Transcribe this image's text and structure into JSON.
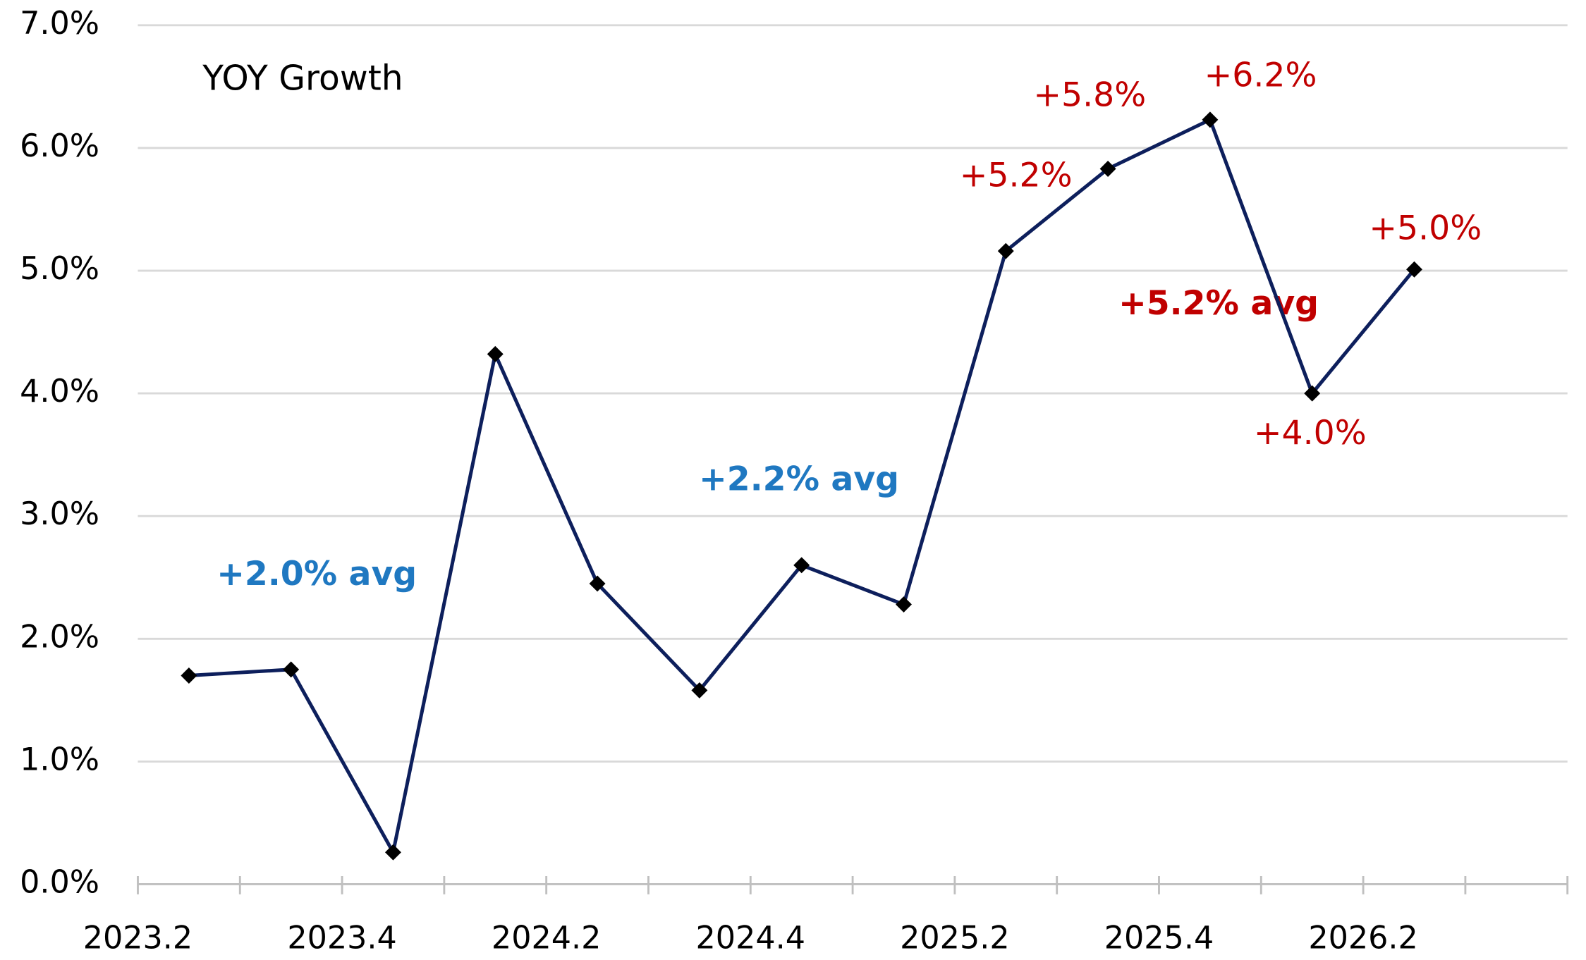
{
  "chart_data": {
    "type": "line",
    "annotations": [
      {
        "text": "YOY Growth",
        "color": "#000000",
        "bold": false
      },
      {
        "text": "+2.0% avg",
        "color": "#1f78c1",
        "bold": true
      },
      {
        "text": "+2.2% avg",
        "color": "#1f78c1",
        "bold": true
      },
      {
        "text": "+5.2% avg",
        "color": "#c00000",
        "bold": true
      }
    ],
    "categories": [
      "2023.2",
      null,
      "2023.4",
      null,
      "2024.2",
      null,
      "2024.4",
      null,
      "2025.2",
      null,
      "2025.4",
      null,
      "2026.2"
    ],
    "series": [
      {
        "color": "#0d1f5c",
        "marker_color": "#000000",
        "label_color": "#c00000",
        "values": [
          1.7,
          1.75,
          0.26,
          4.32,
          2.45,
          1.58,
          2.6,
          2.28,
          5.16,
          5.83,
          6.23,
          4.0,
          5.01
        ],
        "value_labels": [
          null,
          null,
          null,
          null,
          null,
          null,
          null,
          null,
          "+5.2%",
          "+5.8%",
          "+6.2%",
          "+4.0%",
          "+5.0%"
        ]
      }
    ],
    "ylim": [
      0,
      7
    ],
    "yticks": [
      {
        "value": 0,
        "label": "0.0%"
      },
      {
        "value": 1,
        "label": "1.0%"
      },
      {
        "value": 2,
        "label": "2.0%"
      },
      {
        "value": 3,
        "label": "3.0%"
      },
      {
        "value": 4,
        "label": "4.0%"
      },
      {
        "value": 5,
        "label": "5.0%"
      },
      {
        "value": 6,
        "label": "6.0%"
      },
      {
        "value": 7,
        "label": "7.0%"
      }
    ],
    "grid": true
  }
}
